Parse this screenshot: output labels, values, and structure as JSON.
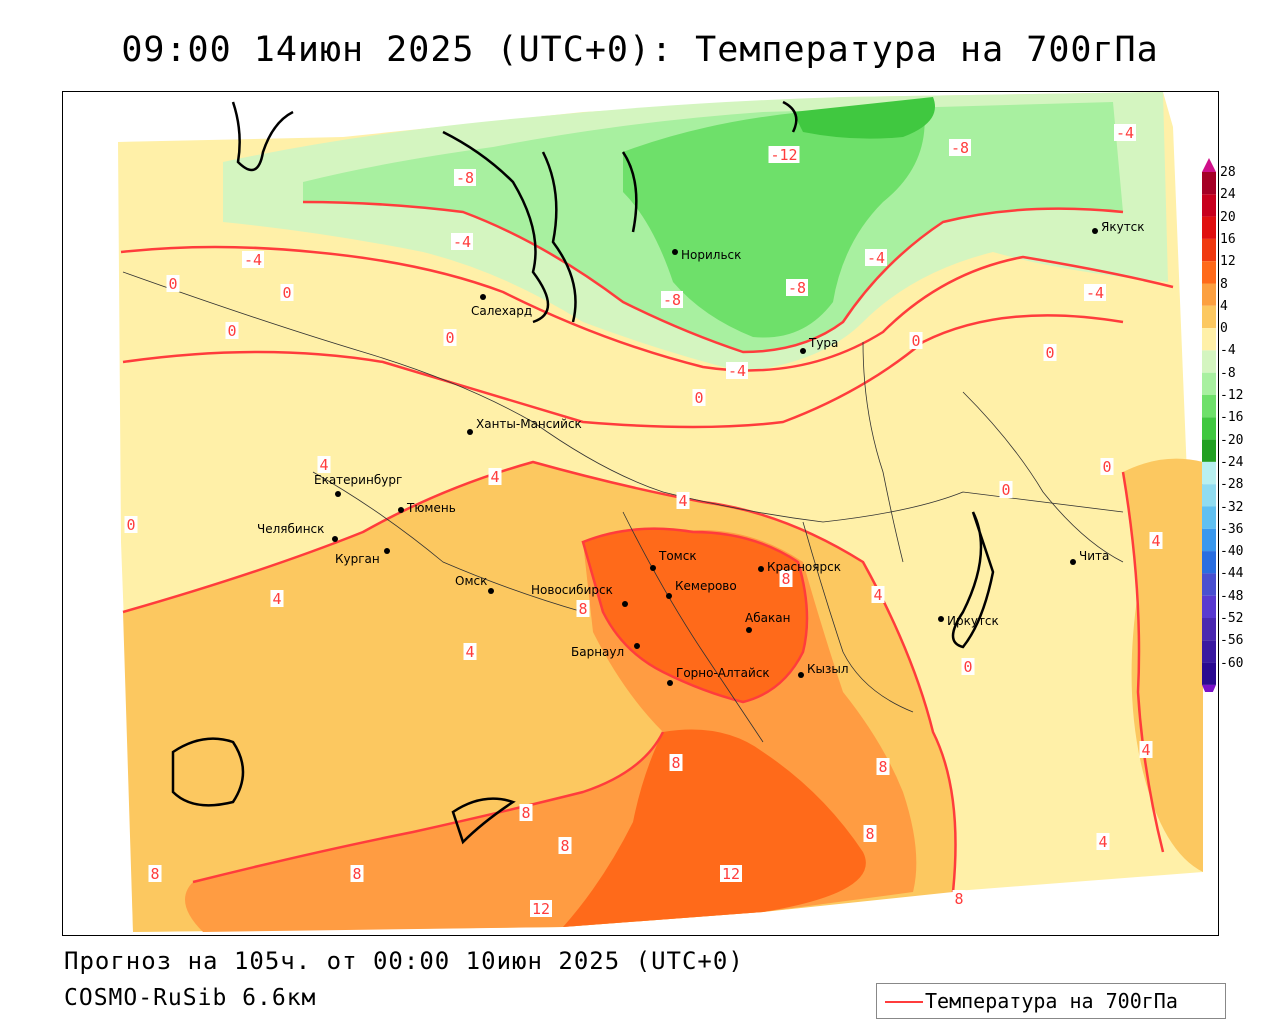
{
  "title": "09:00 14июн 2025 (UTC+0): Температура на 700гПа",
  "footer": {
    "forecast": "Прогноз на 105ч. от 00:00 10июн 2025 (UTC+0)",
    "model": "COSMO-RuSib 6.6км"
  },
  "legend": {
    "line_label": "Температура на 700гПа",
    "line_color": "#ff3c3c"
  },
  "colorbar": {
    "labels": [
      "28",
      "24",
      "20",
      "16",
      "12",
      "8",
      "4",
      "0",
      "-4",
      "-8",
      "-12",
      "-16",
      "-20",
      "-24",
      "-28",
      "-32",
      "-36",
      "-40",
      "-44",
      "-48",
      "-52",
      "-56",
      "-60"
    ],
    "colors": [
      "#a50026",
      "#c8001e",
      "#e01010",
      "#f03a10",
      "#ff6a1a",
      "#fca040",
      "#fcc860",
      "#fff0a8",
      "#d4f5c0",
      "#a8f0a0",
      "#6ee06a",
      "#40c840",
      "#22a022",
      "#b8f0f0",
      "#90dcf0",
      "#60c0f0",
      "#3a98ec",
      "#2a6ee0",
      "#4a50d0",
      "#5a3ad0",
      "#4a28b0",
      "#3a1aa0",
      "#2a0a90"
    ]
  },
  "cities": [
    {
      "name": "Норильск"
    },
    {
      "name": "Якутск"
    },
    {
      "name": "Салехард"
    },
    {
      "name": "Тура"
    },
    {
      "name": "Ханты-Мансийск"
    },
    {
      "name": "Екатеринбург"
    },
    {
      "name": "Тюмень"
    },
    {
      "name": "Челябинск"
    },
    {
      "name": "Курган"
    },
    {
      "name": "Омск"
    },
    {
      "name": "Томск"
    },
    {
      "name": "Красноярск"
    },
    {
      "name": "Новосибирск"
    },
    {
      "name": "Кемерово"
    },
    {
      "name": "Абакан"
    },
    {
      "name": "Барнаул"
    },
    {
      "name": "Горно-Алтайск"
    },
    {
      "name": "Кызыл"
    },
    {
      "name": "Иркутск"
    },
    {
      "name": "Чита"
    }
  ],
  "contour_labels": [
    "-12",
    "-8",
    "-8",
    "-8",
    "-8",
    "-4",
    "-4",
    "-4",
    "-4",
    "-4",
    "-4",
    "0",
    "0",
    "0",
    "0",
    "0",
    "0",
    "0",
    "0",
    "0",
    "0",
    "0",
    "4",
    "4",
    "4",
    "4",
    "4",
    "4",
    "4",
    "4",
    "4",
    "8",
    "8",
    "8",
    "8",
    "8",
    "8",
    "8",
    "8",
    "8",
    "8",
    "12",
    "12"
  ]
}
